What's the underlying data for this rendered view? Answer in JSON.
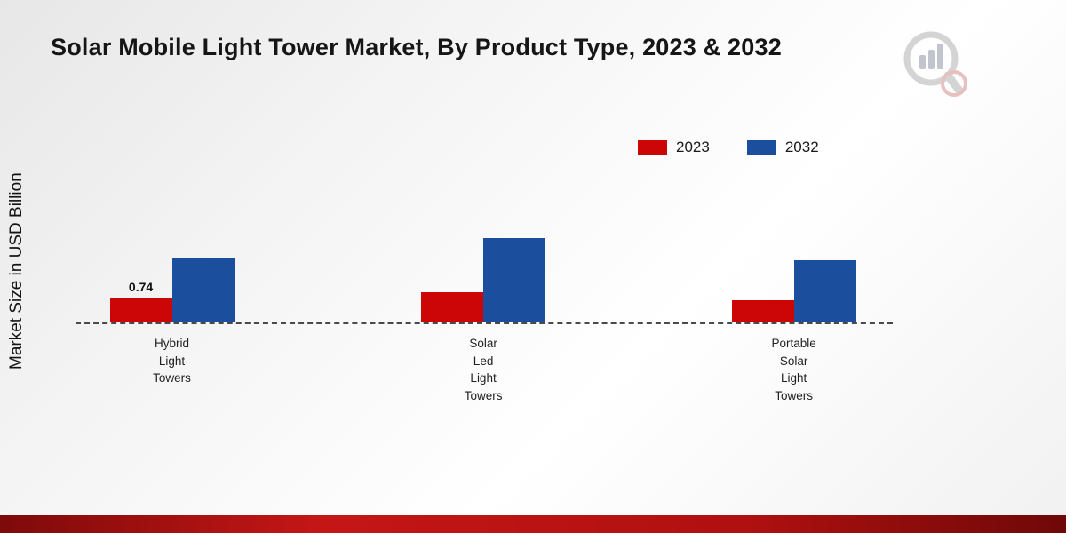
{
  "page": {
    "title": "Solar Mobile Light Tower Market, By Product Type, 2023 & 2032",
    "ylabel": "Market Size in USD Billion"
  },
  "chart_data": {
    "type": "bar",
    "title": "Solar Mobile Light Tower Market, By Product Type, 2023 & 2032",
    "ylabel": "Market Size in USD Billion",
    "xlabel": "",
    "categories": [
      "Hybrid\nLight\nTowers",
      "Solar\nLed\nLight\nTowers",
      "Portable\nSolar\nLight\nTowers"
    ],
    "series": [
      {
        "name": "2023",
        "color": "#cc0606",
        "values": [
          0.74,
          0.95,
          0.7
        ],
        "labels": [
          "0.74",
          "",
          ""
        ]
      },
      {
        "name": "2032",
        "color": "#1b4f9e",
        "values": [
          2.02,
          2.65,
          1.95
        ],
        "labels": [
          "",
          "",
          ""
        ]
      }
    ],
    "ylim": [
      0,
      3
    ],
    "legend_position": "top-right",
    "baseline_style": "dashed",
    "grid": false
  }
}
